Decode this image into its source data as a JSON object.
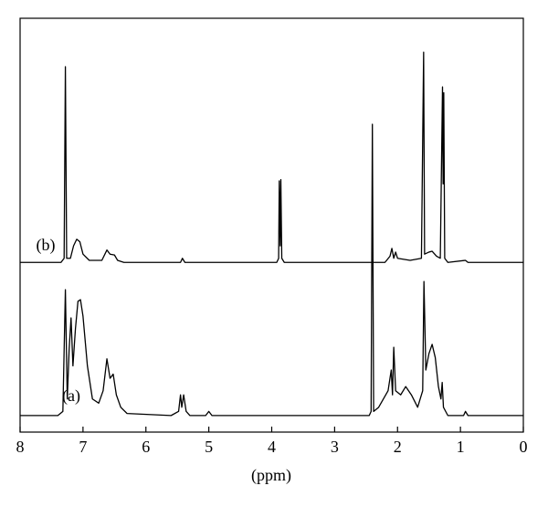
{
  "chart_data": {
    "type": "line",
    "x_label": "(ppm)",
    "xlim": [
      8,
      0
    ],
    "xticks": [
      8,
      7,
      6,
      5,
      4,
      3,
      2,
      1,
      0
    ],
    "ylim": [
      0,
      100
    ],
    "series": [
      {
        "name": "(a)",
        "color": "#000000",
        "x": [
          8.0,
          7.4,
          7.32,
          7.28,
          7.25,
          7.22,
          7.19,
          7.16,
          7.12,
          7.08,
          7.04,
          7.0,
          6.93,
          6.85,
          6.75,
          6.68,
          6.62,
          6.57,
          6.52,
          6.47,
          6.4,
          6.3,
          5.6,
          5.48,
          5.45,
          5.43,
          5.4,
          5.36,
          5.3,
          5.05,
          5.0,
          4.95,
          2.45,
          2.42,
          2.4,
          2.38,
          2.3,
          2.15,
          2.1,
          2.08,
          2.06,
          2.03,
          1.95,
          1.87,
          1.78,
          1.68,
          1.6,
          1.58,
          1.55,
          1.5,
          1.45,
          1.4,
          1.35,
          1.31,
          1.29,
          1.27,
          1.2,
          0.95,
          0.92,
          0.88,
          0.0
        ],
        "values": [
          4,
          4,
          5,
          34.4,
          8,
          20,
          27.6,
          16,
          25,
          31.6,
          32,
          28,
          16,
          8,
          7,
          10,
          17.7,
          13,
          14,
          9,
          6,
          4.5,
          4,
          5,
          9,
          6,
          9,
          5,
          4,
          4,
          5,
          4,
          4,
          5,
          74.4,
          5,
          6,
          10,
          15,
          9,
          20.5,
          10,
          9,
          11,
          9,
          6,
          10,
          36.4,
          15,
          19,
          21.2,
          18,
          11,
          8,
          12,
          6,
          4,
          4,
          5,
          4,
          4
        ]
      },
      {
        "name": "(b)",
        "color": "#000000",
        "x": [
          8.0,
          7.35,
          7.3,
          7.28,
          7.26,
          7.2,
          7.15,
          7.1,
          7.05,
          7.0,
          6.9,
          6.7,
          6.62,
          6.57,
          6.5,
          6.45,
          6.35,
          5.45,
          5.42,
          5.38,
          3.92,
          3.89,
          3.88,
          3.865,
          3.855,
          3.84,
          3.8,
          2.2,
          2.12,
          2.09,
          2.06,
          2.03,
          2.0,
          1.8,
          1.62,
          1.585,
          1.57,
          1.5,
          1.45,
          1.38,
          1.32,
          1.285,
          1.275,
          1.265,
          1.25,
          1.2,
          0.92,
          0.88,
          0.0
        ],
        "values": [
          41,
          41,
          42,
          88.3,
          42,
          42,
          45,
          46.6,
          46,
          43,
          41.5,
          41.5,
          44,
          43,
          42.8,
          41.5,
          41,
          41,
          42,
          41,
          41,
          42,
          60.7,
          45,
          61,
          42,
          41,
          41,
          42.5,
          44.4,
          42,
          43.5,
          42,
          41.5,
          42,
          91.8,
          43,
          43.5,
          43.7,
          42.5,
          42,
          83.4,
          60,
          82,
          42,
          41,
          41.5,
          41,
          41
        ]
      }
    ]
  }
}
